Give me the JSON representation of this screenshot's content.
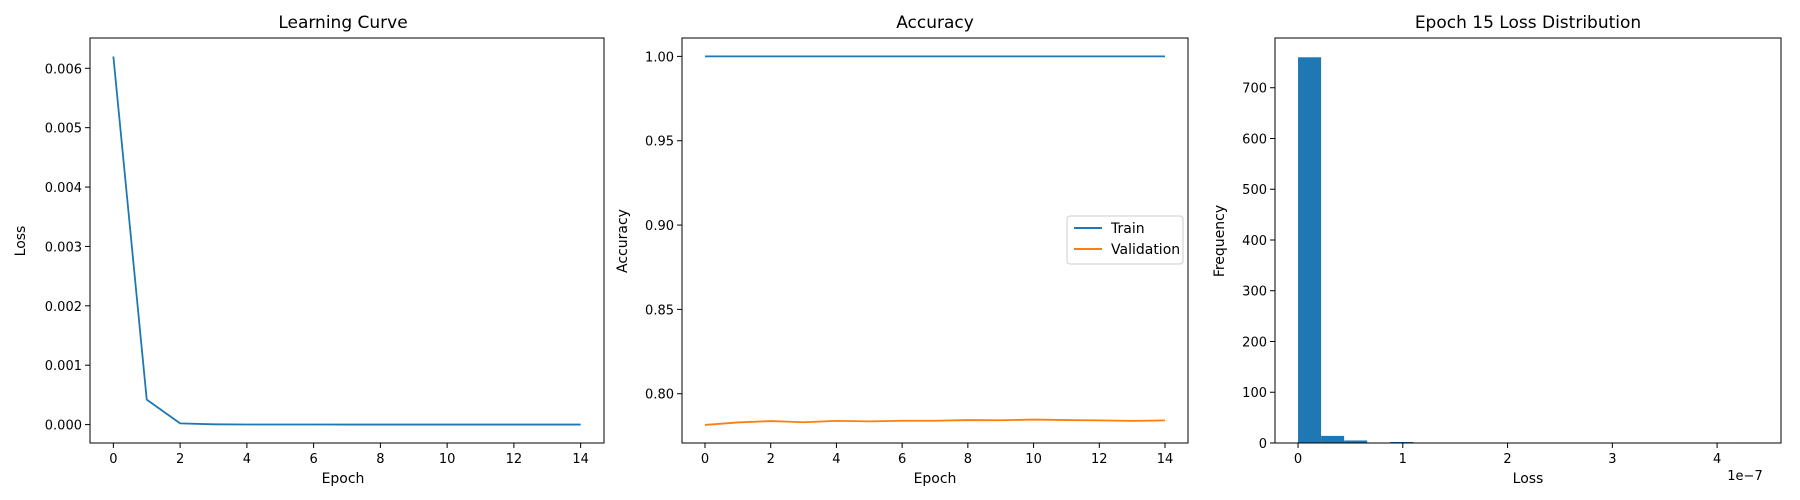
{
  "chart_data": [
    {
      "type": "line",
      "title": "Learning Curve",
      "xlabel": "Epoch",
      "ylabel": "Loss",
      "xlim": [
        -0.7,
        14.7
      ],
      "ylim": [
        -0.00031,
        0.00651
      ],
      "xticks": [
        0,
        2,
        4,
        6,
        8,
        10,
        12,
        14
      ],
      "xtick_labels": [
        "0",
        "2",
        "4",
        "6",
        "8",
        "10",
        "12",
        "14"
      ],
      "yticks": [
        0,
        0.001,
        0.002,
        0.003,
        0.004,
        0.005,
        0.006
      ],
      "ytick_labels": [
        "0.000",
        "0.001",
        "0.002",
        "0.003",
        "0.004",
        "0.005",
        "0.006"
      ],
      "grid": false,
      "series": [
        {
          "color": "#1f77b4",
          "x": [
            0,
            1,
            2,
            3,
            4,
            5,
            6,
            7,
            8,
            9,
            10,
            11,
            12,
            13,
            14
          ],
          "y": [
            0.0062,
            0.00042,
            2e-05,
            5e-06,
            2e-06,
            1e-06,
            1e-06,
            5e-07,
            5e-07,
            3e-07,
            2e-07,
            2e-07,
            1e-07,
            1e-07,
            1e-07
          ]
        }
      ]
    },
    {
      "type": "line",
      "title": "Accuracy",
      "xlabel": "Epoch",
      "ylabel": "Accuracy",
      "xlim": [
        -0.7,
        14.7
      ],
      "ylim": [
        0.7708,
        1.0109
      ],
      "xticks": [
        0,
        2,
        4,
        6,
        8,
        10,
        12,
        14
      ],
      "xtick_labels": [
        "0",
        "2",
        "4",
        "6",
        "8",
        "10",
        "12",
        "14"
      ],
      "yticks": [
        0.8,
        0.85,
        0.9,
        0.95,
        1.0
      ],
      "ytick_labels": [
        "0.80",
        "0.85",
        "0.90",
        "0.95",
        "1.00"
      ],
      "grid": false,
      "legend": "center-right",
      "series": [
        {
          "name": "Train",
          "color": "#1f77b4",
          "x": [
            0,
            1,
            2,
            3,
            4,
            5,
            6,
            7,
            8,
            9,
            10,
            11,
            12,
            13,
            14
          ],
          "y": [
            1.0,
            1.0,
            1.0,
            1.0,
            1.0,
            1.0,
            1.0,
            1.0,
            1.0,
            1.0,
            1.0,
            1.0,
            1.0,
            1.0,
            1.0
          ]
        },
        {
          "name": "Validation",
          "color": "#ff7f0e",
          "x": [
            0,
            1,
            2,
            3,
            4,
            5,
            6,
            7,
            8,
            9,
            10,
            11,
            12,
            13,
            14
          ],
          "y": [
            0.7815,
            0.783,
            0.7838,
            0.7831,
            0.7839,
            0.7836,
            0.784,
            0.784,
            0.7844,
            0.7843,
            0.7847,
            0.7844,
            0.7842,
            0.7839,
            0.7842
          ]
        }
      ]
    },
    {
      "type": "bar",
      "subtype": "histogram",
      "title": "Epoch 15 Loss Distribution",
      "xlabel": "Loss",
      "ylabel": "Frequency",
      "x_scale_label": "1e−7",
      "xlim": [
        -0.22,
        4.61
      ],
      "ylim": [
        0,
        798
      ],
      "xticks": [
        0,
        1,
        2,
        3,
        4
      ],
      "xtick_labels": [
        "0",
        "1",
        "2",
        "3",
        "4"
      ],
      "yticks": [
        0,
        100,
        200,
        300,
        400,
        500,
        600,
        700
      ],
      "ytick_labels": [
        "0",
        "100",
        "200",
        "300",
        "400",
        "500",
        "600",
        "700"
      ],
      "grid": false,
      "color": "#1f77b4",
      "bin_width": 0.22,
      "bin_starts": [
        0.0,
        0.22,
        0.44,
        0.66,
        0.88,
        1.1,
        1.32,
        1.54,
        1.76,
        1.98,
        2.2,
        2.42,
        2.64,
        2.86,
        3.08,
        3.3,
        3.52,
        3.74,
        3.96,
        4.18
      ],
      "counts": [
        760,
        14,
        5,
        1,
        2,
        0,
        0,
        0,
        0,
        0,
        0,
        0,
        0,
        0,
        0,
        0,
        0,
        0,
        0,
        1
      ]
    }
  ]
}
